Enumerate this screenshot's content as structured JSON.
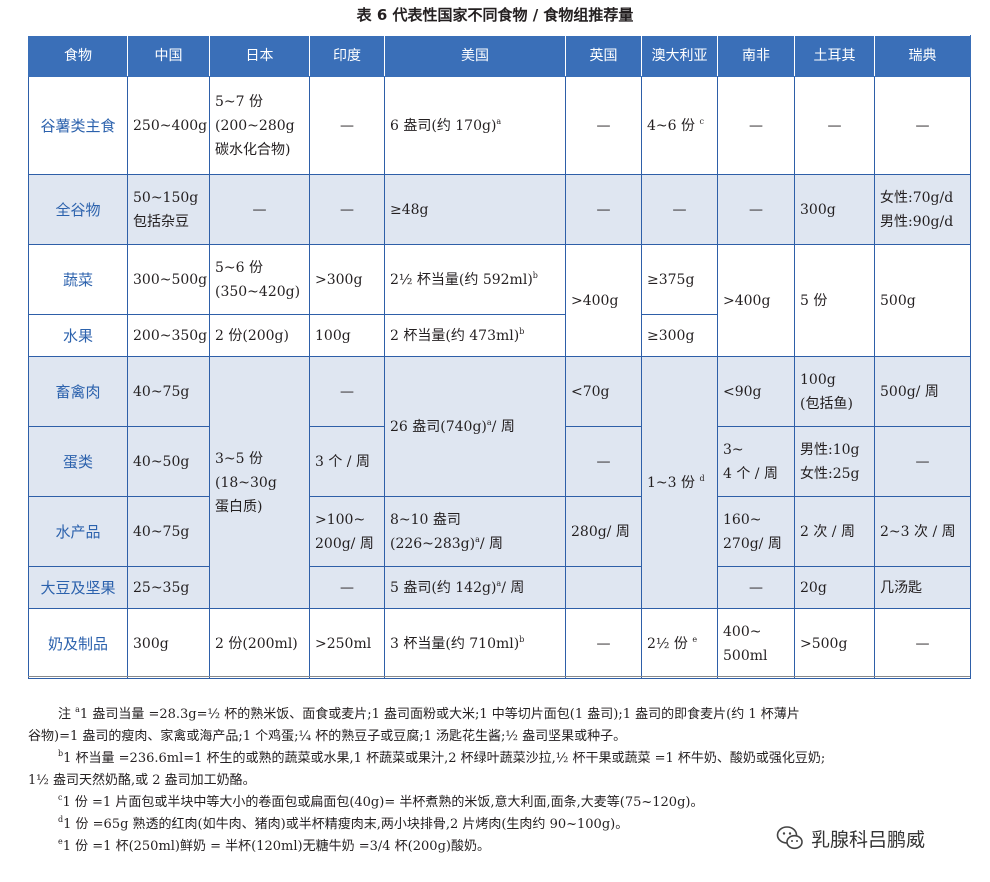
{
  "title": "表 6  代表性国家不同食物 / 食物组推荐量",
  "headers": [
    "食物",
    "中国",
    "日本",
    "印度",
    "美国",
    "英国",
    "澳大利亚",
    "南非",
    "土耳其",
    "瑞典"
  ],
  "rows": {
    "grain": {
      "label": "谷薯类主食",
      "cn": "250~400g",
      "jp": [
        "5~7 份",
        "(200~280g",
        "碳水化合物)"
      ],
      "in": "—",
      "us": "6 盎司(约 170g)",
      "us_sup": "a",
      "uk": "—",
      "au": "4~6 份",
      "au_sup": "c",
      "za": "—",
      "tr": "—",
      "se": "—"
    },
    "whole": {
      "label": "全谷物",
      "cn": [
        "50~150g",
        "包括杂豆"
      ],
      "jp": "—",
      "in": "—",
      "us": "≥48g",
      "uk": "—",
      "au": "—",
      "za": "—",
      "tr": "300g",
      "se": [
        "女性:70g/d",
        "男性:90g/d"
      ]
    },
    "veg": {
      "label": "蔬菜",
      "cn": "300~500g",
      "jp": [
        "5~6 份",
        "(350~420g)"
      ],
      "in": ">300g",
      "us": "2½ 杯当量(约 592ml)",
      "us_sup": "b",
      "au": "≥375g"
    },
    "fruit": {
      "label": "水果",
      "cn": "200~350g",
      "jp": "2 份(200g)",
      "in": "100g",
      "us": "2 杯当量(约 473ml)",
      "us_sup": "b",
      "au": "≥300g"
    },
    "veg_fruit_shared": {
      "uk": ">400g",
      "za": ">400g",
      "tr": "5 份",
      "se": "500g"
    },
    "meat": {
      "label": "畜禽肉",
      "cn": "40~75g",
      "in": "—",
      "uk": "<70g",
      "za": "<90g",
      "tr": [
        "100g",
        "(包括鱼)"
      ],
      "se": "500g/ 周"
    },
    "egg": {
      "label": "蛋类",
      "cn": "40~50g",
      "in": "3 个 / 周",
      "uk": "—",
      "za": [
        "3~",
        "4 个 / 周"
      ],
      "tr": [
        "男性:10g",
        "女性:25g"
      ],
      "se": "—"
    },
    "meat_egg_shared": {
      "us": "26 盎司(740g)",
      "us_sup": "a",
      "us_tail": "/ 周"
    },
    "protein_shared": {
      "jp": [
        "3~5 份",
        "(18~30g",
        "蛋白质)"
      ],
      "au": "1~3 份",
      "au_sup": "d"
    },
    "aquatic": {
      "label": "水产品",
      "cn": "40~75g",
      "in": [
        ">100~",
        "200g/ 周"
      ],
      "us": [
        "8~10 盎司",
        "(226~283g)"
      ],
      "us_sup": "a",
      "us_tail": "/ 周",
      "uk": "280g/ 周",
      "za": [
        "160~",
        "270g/ 周"
      ],
      "tr": "2 次 / 周",
      "se": "2~3 次 / 周"
    },
    "soy": {
      "label": "大豆及坚果",
      "cn": "25~35g",
      "in": "—",
      "us": "5 盎司(约 142g)",
      "us_sup": "a",
      "us_tail": "/ 周",
      "uk": "",
      "za": "—",
      "tr": "20g",
      "se": "几汤匙"
    },
    "dairy": {
      "label": "奶及制品",
      "cn": "300g",
      "jp": "2 份(200ml)",
      "in": ">250ml",
      "us": "3 杯当量(约 710ml)",
      "us_sup": "b",
      "uk": "—",
      "au": "2½ 份",
      "au_sup": "e",
      "za": [
        "400~",
        "500ml"
      ],
      "tr": ">500g",
      "se": "—"
    }
  },
  "notes": {
    "a_prefix": "注 ",
    "a_sup": "a",
    "a_line1": "1 盎司当量 =28.3g=½ 杯的熟米饭、面食或麦片;1 盎司面粉或大米;1 中等切片面包(1 盎司);1 盎司的即食麦片(约 1 杯薄片",
    "a_line2": "谷物)=1 盎司的瘦肉、家禽或海产品;1 个鸡蛋;¼ 杯的熟豆子或豆腐;1 汤匙花生酱;½ 盎司坚果或种子。",
    "b_sup": "b",
    "b_line1": "1 杯当量 =236.6ml=1 杯生的或熟的蔬菜或水果,1 杯蔬菜或果汁,2 杯绿叶蔬菜沙拉,½ 杯干果或蔬菜 =1 杯牛奶、酸奶或强化豆奶;",
    "b_line2": "1½ 盎司天然奶酪,或 2 盎司加工奶酪。",
    "c_sup": "c",
    "c_line": "1 份 =1 片面包或半块中等大小的卷面包或扁面包(40g)= 半杯煮熟的米饭,意大利面,面条,大麦等(75~120g)。",
    "d_sup": "d",
    "d_line": "1 份 =65g 熟透的红肉(如牛肉、猪肉)或半杯精瘦肉末,两小块排骨,2 片烤肉(生肉约 90~100g)。",
    "e_sup": "e",
    "e_line": "1 份 =1 杯(250ml)鲜奶 = 半杯(120ml)无糖牛奶 =3/4 杯(200g)酸奶。"
  },
  "watermark": {
    "text": "乳腺科吕鹏威",
    "icon": "wechat-icon"
  },
  "colors": {
    "header_bg": "#3a6fb8",
    "row_shade": "#dfe6f1",
    "row_label": "#2c62ad"
  }
}
